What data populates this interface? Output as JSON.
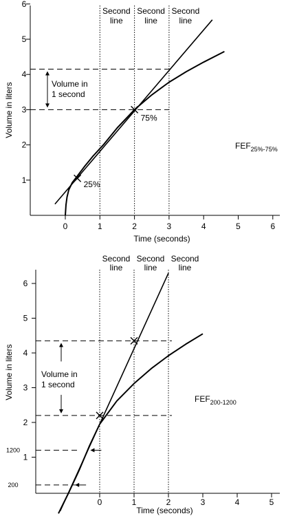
{
  "chart_data": [
    {
      "type": "line",
      "title": "",
      "xlabel": "Time (seconds)",
      "ylabel": "Volume in liters",
      "xlim": [
        -0.6,
        6
      ],
      "ylim": [
        0,
        6
      ],
      "x_ticks": [
        "0",
        "1",
        "2",
        "3",
        "4",
        "5",
        "6"
      ],
      "y_ticks": [
        "1",
        "2",
        "3",
        "4",
        "5",
        "6"
      ],
      "second_lines": [
        {
          "x": 1,
          "label": [
            "Second",
            "line"
          ]
        },
        {
          "x": 2,
          "label": [
            "Second",
            "line"
          ]
        },
        {
          "x": 3,
          "label": [
            "Second",
            "line"
          ]
        }
      ],
      "series": [
        {
          "x": [
            0.0,
            0.02,
            0.05,
            0.1,
            0.2,
            0.35,
            0.55,
            0.8,
            1.1,
            1.5,
            2.0,
            2.5,
            3.0,
            3.5,
            4.0,
            4.6
          ],
          "y": [
            0.0,
            0.3,
            0.52,
            0.72,
            0.93,
            1.12,
            1.38,
            1.68,
            2.0,
            2.48,
            3.0,
            3.42,
            3.78,
            4.08,
            4.35,
            4.65
          ]
        },
        {
          "x": [
            -0.3,
            4.25
          ],
          "y": [
            0.32,
            5.55
          ]
        }
      ],
      "markers": [
        {
          "x": 0.35,
          "y": 1.05,
          "label": "25%"
        },
        {
          "x": 2.0,
          "y": 3.0,
          "label": "75%"
        }
      ],
      "volume_lines": [
        3.0,
        4.15
      ],
      "volume_label": [
        "Volume in",
        "1 second"
      ],
      "fef_label": "FEF",
      "fef_sub": "25%-75%"
    },
    {
      "type": "line",
      "title": "",
      "xlabel": "Time (seconds)",
      "ylabel": "Volume in liters",
      "xlim": [
        -1.1,
        5.1
      ],
      "ylim": [
        -0.6,
        6.4
      ],
      "x_ticks": [
        "0",
        "1",
        "2",
        "3",
        "4",
        "5"
      ],
      "y_ticks": [
        "1",
        "2",
        "3",
        "4",
        "5",
        "6"
      ],
      "extra_y_ticks": [
        "1200",
        "200"
      ],
      "second_lines": [
        {
          "x": 0,
          "label": [
            "Second",
            "line"
          ]
        },
        {
          "x": 1,
          "label": [
            "Second",
            "line"
          ]
        },
        {
          "x": 2,
          "label": [
            "Second",
            "line"
          ]
        }
      ],
      "series": [
        {
          "x": [
            -1.2,
            -0.9,
            -0.6,
            -0.3,
            0.0,
            0.5,
            1.0,
            1.5,
            2.0,
            2.5,
            3.0
          ],
          "y": [
            -0.62,
            -0.02,
            0.62,
            1.32,
            1.95,
            2.62,
            3.12,
            3.55,
            3.92,
            4.25,
            4.55
          ]
        },
        {
          "x": [
            -1.15,
            2.0
          ],
          "y": [
            -0.55,
            6.3
          ]
        }
      ],
      "markers": [
        {
          "x": 0.0,
          "y": 2.2
        },
        {
          "x": 1.0,
          "y": 4.35
        }
      ],
      "volume_lines": [
        2.2,
        4.35
      ],
      "level_lines": [
        1.2,
        0.2
      ],
      "volume_label": [
        "Volume in",
        "1 second"
      ],
      "fef_label": "FEF",
      "fef_sub": "200-1200"
    }
  ]
}
